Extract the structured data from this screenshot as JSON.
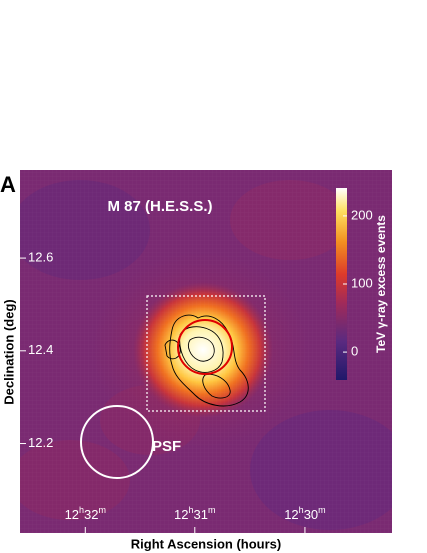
{
  "chart_data": {
    "type": "heatmap",
    "panel_label": "A",
    "title": "M 87 (H.E.S.S.)",
    "x_label": "Right Ascension (hours)",
    "y_label": "Declination (deg)",
    "xlim": [
      12.5432,
      12.4868
    ],
    "xticks": [
      {
        "value": 12.5333,
        "label": "12h32m"
      },
      {
        "value": 12.5167,
        "label": "12h31m"
      },
      {
        "value": 12.5,
        "label": "12h30m"
      }
    ],
    "ylim": [
      12.007,
      12.79
    ],
    "yticks": [
      12.2,
      12.4,
      12.6
    ],
    "colorbar": {
      "label": "TeV γ-ray excess events",
      "lim": [
        -41,
        241
      ],
      "ticks": [
        0,
        100,
        200
      ]
    },
    "psf_label": "PSF"
  }
}
